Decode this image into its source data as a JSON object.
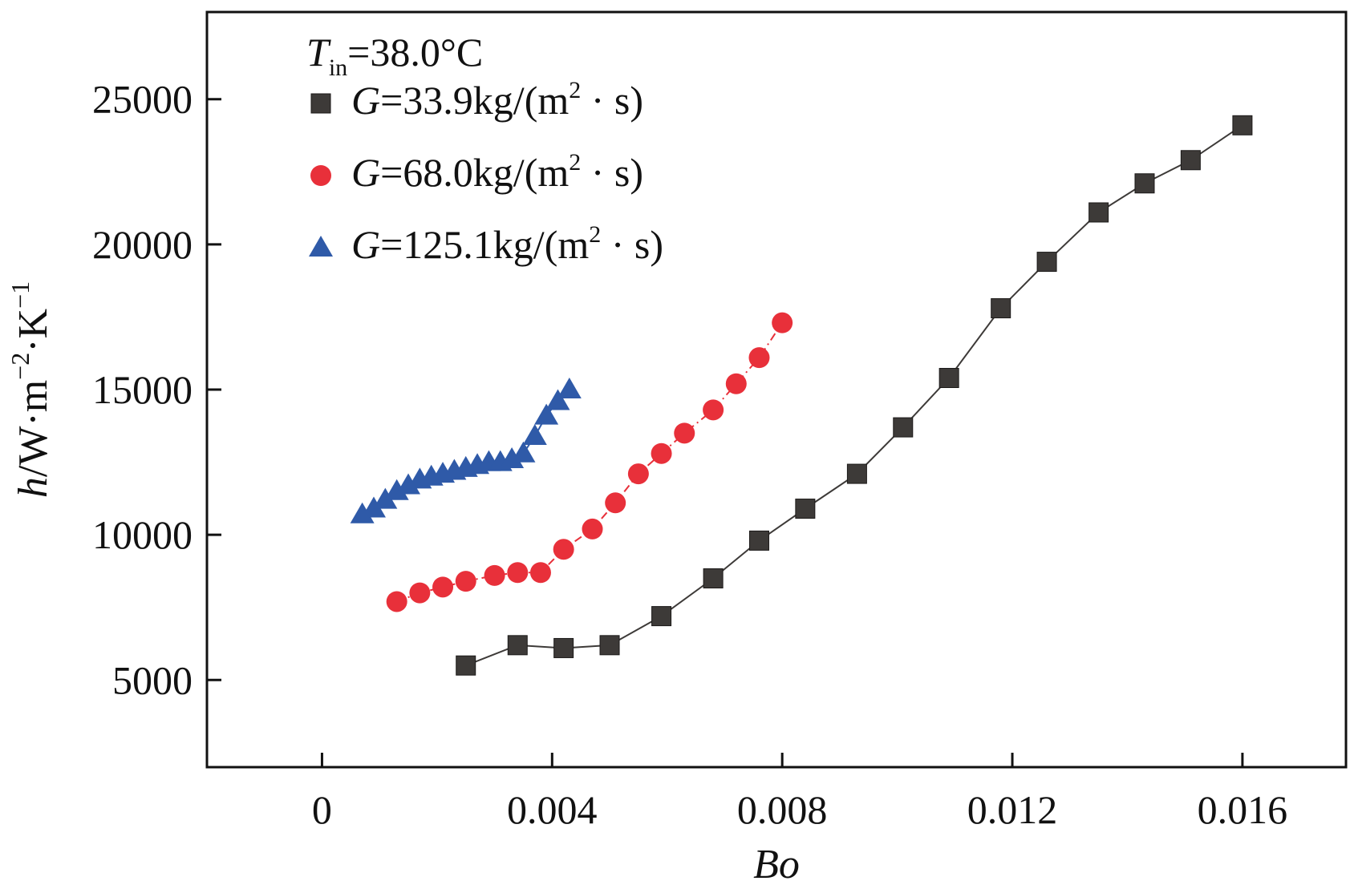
{
  "chart_data": {
    "type": "line",
    "xlabel": "Bo",
    "ylabel": {
      "var": "h",
      "unit_prefix": "/W·m",
      "exp1": "−2",
      "mid": "·K",
      "exp2": "−1"
    },
    "xlim": [
      -0.002,
      0.0178
    ],
    "ylim": [
      2000,
      28000
    ],
    "xticks": [
      0,
      0.004,
      0.008,
      0.012,
      0.016
    ],
    "xtick_labels": [
      "0",
      "0.004",
      "0.008",
      "0.012",
      "0.016"
    ],
    "yticks": [
      5000,
      10000,
      15000,
      20000,
      25000
    ],
    "ytick_labels": [
      "5000",
      "10000",
      "15000",
      "20000",
      "25000"
    ],
    "legend": {
      "placement": "top-left",
      "header": {
        "var": "T",
        "sub": "in",
        "rest": "=38.0°C"
      }
    },
    "series": [
      {
        "name": "G=33.9kg/(m²·s)",
        "label_var": "G",
        "label_rest": "=33.9kg/(m",
        "label_sup": "2",
        "label_tail": " · s)",
        "marker": "square",
        "color": "#3d3a38",
        "line_style": "solid",
        "x": [
          0.0025,
          0.0034,
          0.0042,
          0.005,
          0.0059,
          0.0068,
          0.0076,
          0.0084,
          0.0093,
          0.0101,
          0.0109,
          0.0118,
          0.0126,
          0.0135,
          0.0143,
          0.0151,
          0.016
        ],
        "y": [
          5500,
          6200,
          6100,
          6200,
          7200,
          8500,
          9800,
          10900,
          12100,
          13700,
          15400,
          17800,
          19400,
          21100,
          22100,
          22900,
          24100
        ]
      },
      {
        "name": "G=68.0kg/(m²·s)",
        "label_var": "G",
        "label_rest": "=68.0kg/(m",
        "label_sup": "2",
        "label_tail": " · s)",
        "marker": "circle",
        "color": "#e8303a",
        "line_style": "dashdot",
        "x": [
          0.0013,
          0.0017,
          0.0021,
          0.0025,
          0.003,
          0.0034,
          0.0038,
          0.0042,
          0.0047,
          0.0051,
          0.0055,
          0.0059,
          0.0063,
          0.0068,
          0.0072,
          0.0076,
          0.008
        ],
        "y": [
          7700,
          8000,
          8200,
          8400,
          8600,
          8700,
          8700,
          9500,
          10200,
          11100,
          12100,
          12800,
          13500,
          14300,
          15200,
          16100,
          17300
        ]
      },
      {
        "name": "G=125.1kg/(m²·s)",
        "label_var": "G",
        "label_rest": "=125.1kg/(m",
        "label_sup": "2",
        "label_tail": " · s)",
        "marker": "triangle",
        "color": "#2f5aa8",
        "line_style": "solid",
        "x": [
          0.0007,
          0.0009,
          0.0011,
          0.0013,
          0.0015,
          0.0017,
          0.0019,
          0.0021,
          0.0023,
          0.0025,
          0.0027,
          0.0029,
          0.0031,
          0.0033,
          0.0035,
          0.0037,
          0.0039,
          0.0041,
          0.0043
        ],
        "y": [
          10700,
          10900,
          11200,
          11500,
          11700,
          11900,
          12000,
          12100,
          12200,
          12300,
          12400,
          12500,
          12500,
          12600,
          12800,
          13400,
          14100,
          14600,
          15000
        ]
      }
    ]
  }
}
